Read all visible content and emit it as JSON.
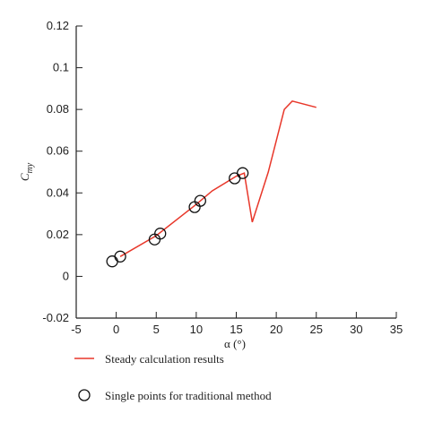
{
  "chart_data": {
    "type": "line",
    "x_label": "α (°)",
    "y_label": {
      "text": "C",
      "subscript": "my"
    },
    "xlim": [
      -5,
      35
    ],
    "xticks": [
      -5,
      0,
      5,
      10,
      15,
      20,
      25,
      30,
      35
    ],
    "ylim": [
      -0.02,
      0.12
    ],
    "yticks": [
      -0.02,
      0,
      0.02,
      0.04,
      0.06,
      0.08,
      0.1,
      0.12
    ],
    "series": [
      {
        "name": "Steady calculation results",
        "color": "#e8372a",
        "style": "line",
        "x": [
          0.5,
          5,
          10,
          12,
          15,
          16,
          17,
          19,
          21,
          22,
          25
        ],
        "values": [
          0.0095,
          0.0195,
          0.0345,
          0.041,
          0.048,
          0.0495,
          0.026,
          0.05,
          0.08,
          0.084,
          0.081
        ]
      },
      {
        "name": "Single points for traditional method",
        "color": "#111111",
        "style": "marker",
        "x": [
          -0.5,
          0.5,
          4.8,
          5.5,
          9.8,
          10.5,
          14.8,
          15.8
        ],
        "values": [
          0.0072,
          0.0095,
          0.0177,
          0.0205,
          0.0332,
          0.0362,
          0.047,
          0.0495
        ]
      }
    ]
  }
}
